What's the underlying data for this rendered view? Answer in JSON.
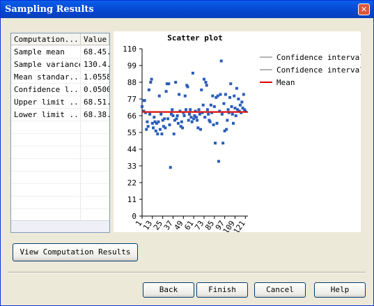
{
  "dialog": {
    "title": "Sampling Results",
    "table": {
      "columns": [
        "Computation...",
        "Value"
      ],
      "rows": [
        [
          "Sample mean",
          "68.45."
        ],
        [
          "Sample variance",
          "130.4."
        ],
        [
          "Mean standar...",
          "1.0558"
        ],
        [
          "Confidence l...",
          "0.0500"
        ],
        [
          "Upper limit ...",
          "68.51."
        ],
        [
          "Lower limit ...",
          "68.38."
        ]
      ]
    },
    "buttons": {
      "view": "View Computation Results",
      "back": "Back",
      "finish": "Finish",
      "cancel": "Cancel",
      "help": "Help"
    }
  },
  "chart_data": {
    "type": "scatter",
    "title": "Scatter plot",
    "points": {
      "color": "#2a5cb8",
      "values": [
        72,
        76,
        69,
        76,
        68,
        57,
        62,
        59,
        83,
        67,
        88,
        90,
        61,
        58,
        65,
        62,
        56,
        61,
        54,
        62,
        79,
        57,
        67,
        54,
        63,
        59,
        64,
        58,
        82,
        87,
        64,
        87,
        60,
        32,
        67,
        70,
        66,
        54,
        63,
        88,
        64,
        66,
        61,
        80,
        69,
        59,
        62,
        58,
        68,
        66,
        79,
        70,
        86,
        85,
        63,
        67,
        70,
        65,
        62,
        94,
        64,
        66,
        69,
        65,
        63,
        58,
        70,
        67,
        57,
        83,
        68,
        73,
        90,
        65,
        88,
        86,
        70,
        67,
        63,
        62,
        73,
        68,
        79,
        60,
        72,
        48,
        78,
        61,
        79,
        36,
        69,
        80,
        102,
        67,
        48,
        74,
        56,
        80,
        57,
        63,
        70,
        68,
        78,
        87,
        72,
        67,
        61,
        79,
        71,
        66,
        84,
        70,
        77,
        69,
        73,
        68,
        75,
        71,
        80,
        70,
        69
      ]
    },
    "series": [
      {
        "name": "Confidence interval",
        "color": "#b4b4b4",
        "value": 68.51
      },
      {
        "name": "Confidence interval",
        "color": "#b4b4b4",
        "value": 68.38
      },
      {
        "name": "Mean",
        "color": "#e00000",
        "value": 68.45
      }
    ],
    "xlim": [
      1,
      124
    ],
    "xticks": [
      1,
      13,
      25,
      37,
      49,
      61,
      73,
      85,
      97,
      109,
      121
    ],
    "ylim": [
      0,
      110
    ],
    "yticks": [
      0,
      11,
      22,
      33,
      44,
      55,
      66,
      77,
      88,
      99,
      110
    ]
  }
}
